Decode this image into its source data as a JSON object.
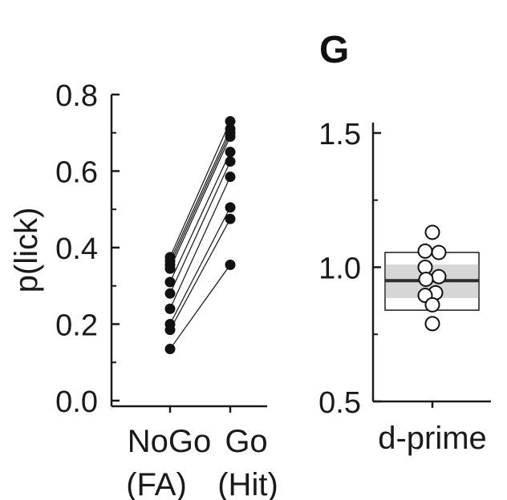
{
  "panel_label": "G",
  "chart_data": [
    {
      "type": "scatter",
      "ylabel": "p(lick)",
      "ylim": [
        0,
        0.8
      ],
      "yticks": [
        "0.0",
        "0.2",
        "0.4",
        "0.6",
        "0.8"
      ],
      "categories": [
        [
          "NoGo",
          "(FA)"
        ],
        [
          "Go",
          "(Hit)"
        ]
      ],
      "paired_points": [
        {
          "nogo": 0.375,
          "go": 0.73
        },
        {
          "nogo": 0.365,
          "go": 0.71
        },
        {
          "nogo": 0.355,
          "go": 0.7
        },
        {
          "nogo": 0.345,
          "go": 0.69
        },
        {
          "nogo": 0.31,
          "go": 0.65
        },
        {
          "nogo": 0.28,
          "go": 0.625
        },
        {
          "nogo": 0.24,
          "go": 0.585
        },
        {
          "nogo": 0.2,
          "go": 0.505
        },
        {
          "nogo": 0.185,
          "go": 0.475
        },
        {
          "nogo": 0.135,
          "go": 0.355
        }
      ]
    },
    {
      "type": "box",
      "category": "d-prime",
      "ylim": [
        0.5,
        1.55
      ],
      "yticks": [
        "0.5",
        "1.0",
        "1.5"
      ],
      "box": {
        "whisker_low": 0.84,
        "whisker_high": 1.055,
        "q1": 0.885,
        "q3": 1.01,
        "median": 0.95
      },
      "points": [
        1.13,
        1.06,
        1.055,
        1.0,
        0.965,
        0.955,
        0.905,
        0.895,
        0.86,
        0.79
      ]
    }
  ]
}
